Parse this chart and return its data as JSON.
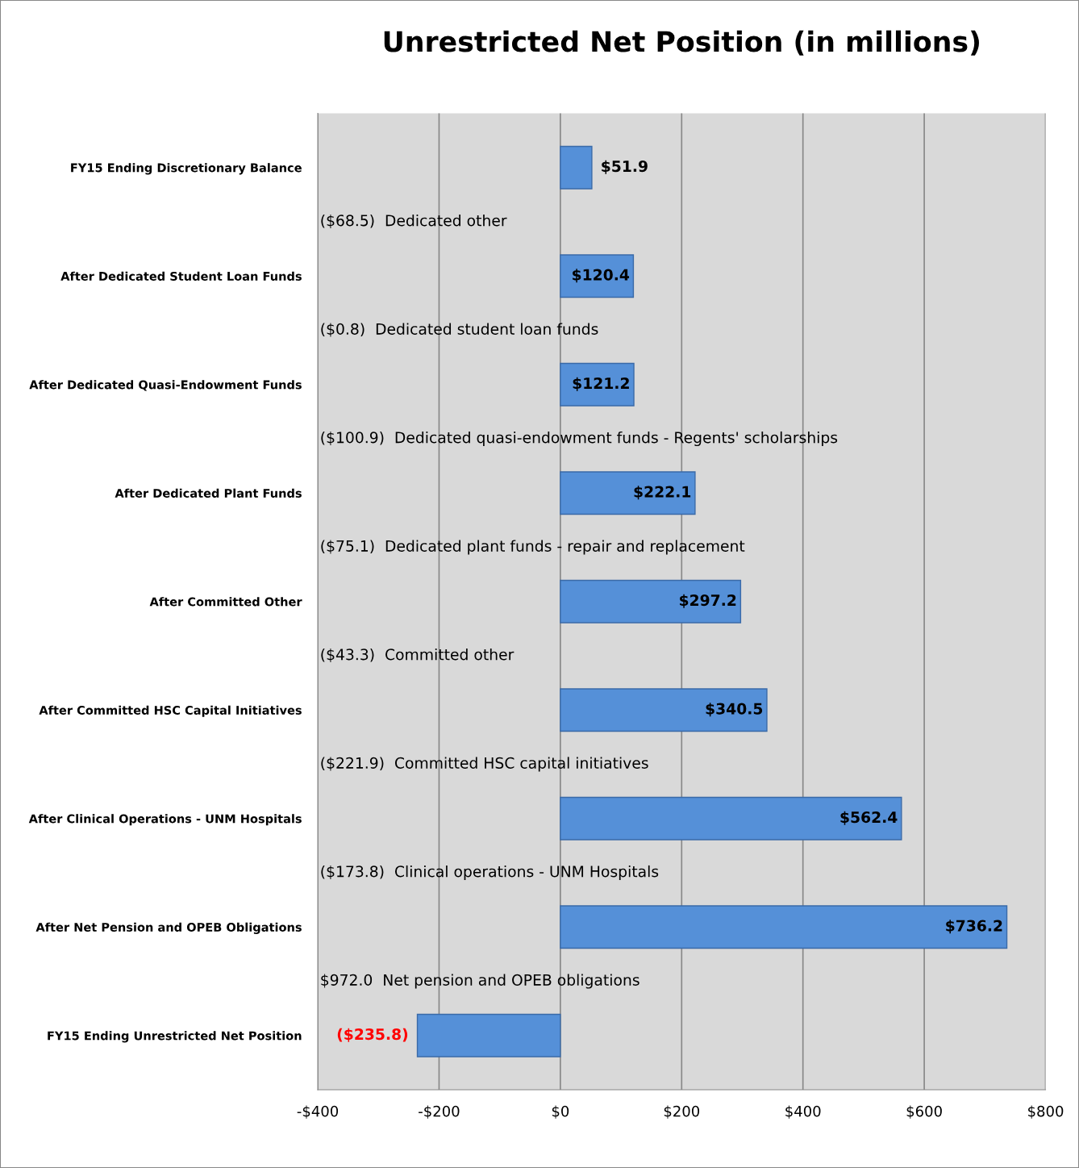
{
  "chart_data": {
    "type": "bar",
    "orientation": "horizontal",
    "title": "Unrestricted Net Position (in millions)",
    "categories": [
      "FY15 Ending Discretionary Balance",
      "After Dedicated Student Loan Funds",
      "After Dedicated Quasi-Endowment Funds",
      "After Dedicated Plant Funds",
      "After Committed Other",
      "After Committed HSC Capital Initiatives",
      "After Clinical Operations - UNM Hospitals",
      "After Net Pension and OPEB Obligations",
      "FY15 Ending Unrestricted Net Position"
    ],
    "values": [
      51.9,
      120.4,
      121.2,
      222.1,
      297.2,
      340.5,
      562.4,
      736.2,
      -235.8
    ],
    "value_labels": [
      "$51.9",
      "$120.4",
      "$121.2",
      "$222.1",
      "$297.2",
      "$340.5",
      "$562.4",
      "$736.2",
      "($235.8)"
    ],
    "color": "#5590d8",
    "xlim": [
      -400,
      800
    ],
    "xticks": [
      {
        "value": -400,
        "label": "-$400"
      },
      {
        "value": -200,
        "label": "-$200"
      },
      {
        "value": 0,
        "label": "$0"
      },
      {
        "value": 200,
        "label": "$200"
      },
      {
        "value": 400,
        "label": "$400"
      },
      {
        "value": 600,
        "label": "$600"
      },
      {
        "value": 800,
        "label": "$800"
      }
    ],
    "grid": "x",
    "annotations": [
      "($68.5)  Dedicated other",
      "($0.8)  Dedicated student loan funds",
      "($100.9)  Dedicated quasi-endowment funds - Regents' scholarships",
      "($75.1)  Dedicated plant funds - repair and replacement",
      "($43.3)  Committed other",
      "($221.9)  Committed HSC capital initiatives",
      "($173.8)  Clinical operations - UNM Hospitals",
      "$972.0  Net pension and OPEB obligations"
    ]
  }
}
